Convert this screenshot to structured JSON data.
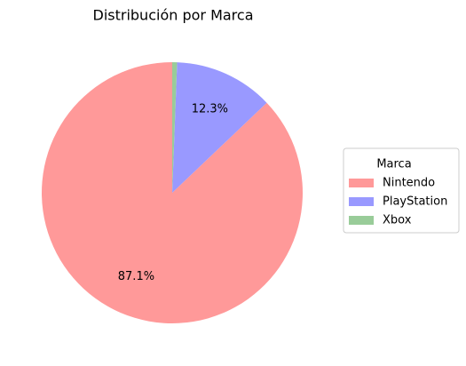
{
  "chart_data": {
    "type": "pie",
    "title": "Distribución por Marca",
    "categories": [
      "Nintendo",
      "PlayStation",
      "Xbox"
    ],
    "values": [
      87.1,
      12.3,
      0.6
    ],
    "value_labels": [
      "87.1%",
      "12.3%",
      null
    ],
    "colors": [
      "#ff9999",
      "#9999ff",
      "#99cc99"
    ],
    "legend_title": "Marca",
    "legend": "right"
  }
}
